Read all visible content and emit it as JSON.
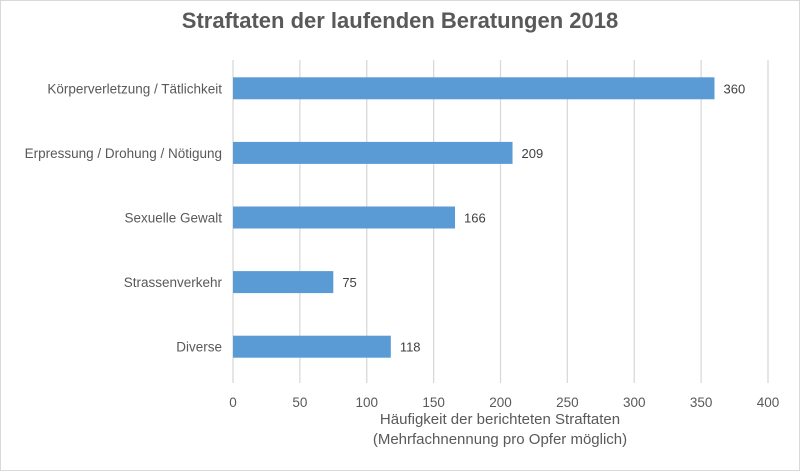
{
  "chart_data": {
    "type": "bar",
    "orientation": "horizontal",
    "title": "Straftaten der laufenden Beratungen 2018",
    "categories": [
      "Körperverletzung / Tätlichkeit",
      "Erpressung / Drohung / Nötigung",
      "Sexuelle Gewalt",
      "Strassenverkehr",
      "Diverse"
    ],
    "values": [
      360,
      209,
      166,
      75,
      118
    ],
    "xlabel": "Häufigkeit der berichteten Straftaten",
    "xlabel_line2": "(Mehrfachnennung pro Opfer möglich)",
    "ylabel": "",
    "xlim": [
      0,
      400
    ],
    "xticks": [
      0,
      50,
      100,
      150,
      200,
      250,
      300,
      350,
      400
    ],
    "grid": true,
    "legend": "none",
    "bar_color": "#5b9bd5",
    "data_labels": true
  }
}
